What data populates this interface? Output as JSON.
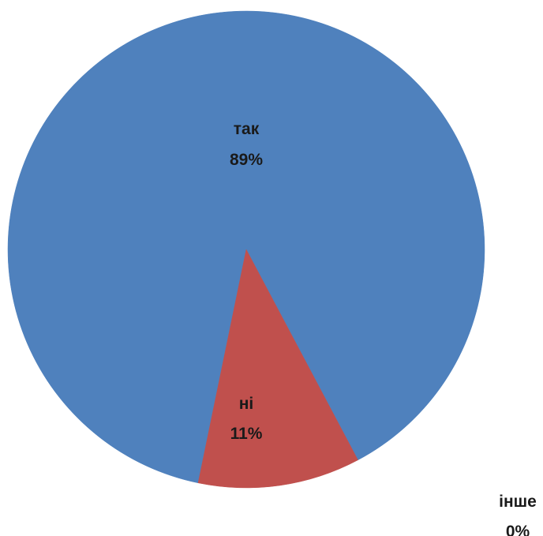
{
  "chart_data": {
    "type": "pie",
    "title": "",
    "slices": [
      {
        "label": "так",
        "value": 89,
        "percent_label": "89%",
        "color": "#4F81BD"
      },
      {
        "label": "ні",
        "value": 11,
        "percent_label": "11%",
        "color": "#C0504D"
      },
      {
        "label": "інше",
        "value": 0,
        "percent_label": "0%",
        "color": "#9BBB59"
      }
    ],
    "legend": "none",
    "data_labels": "category and percent"
  }
}
